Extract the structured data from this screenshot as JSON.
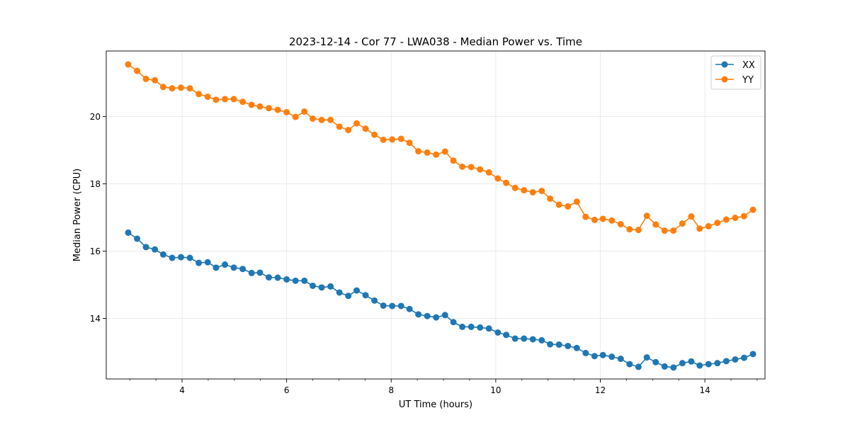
{
  "chart_data": {
    "type": "line",
    "title": "2023-12-14 - Cor 77 - LWA038 - Median Power vs. Time",
    "xlabel": "UT Time (hours)",
    "ylabel": "Median Power (CPU)",
    "xlim": [
      2.55,
      15.15
    ],
    "ylim": [
      12.2,
      21.95
    ],
    "xticks": [
      4,
      6,
      8,
      10,
      12,
      14
    ],
    "xtick_labels": [
      "4",
      "6",
      "8",
      "10",
      "12",
      "14"
    ],
    "yticks": [
      14,
      16,
      18,
      20
    ],
    "ytick_labels": [
      "14",
      "16",
      "18",
      "20"
    ],
    "x_minor_step": 0.5,
    "grid": true,
    "legend_position": "top-right",
    "series": [
      {
        "name": "XX",
        "color": "#1f77b4",
        "x": [
          2.97,
          3.14,
          3.31,
          3.48,
          3.64,
          3.81,
          3.98,
          4.15,
          4.32,
          4.49,
          4.65,
          4.82,
          4.99,
          5.16,
          5.33,
          5.49,
          5.66,
          5.83,
          6.0,
          6.17,
          6.34,
          6.5,
          6.67,
          6.84,
          7.01,
          7.18,
          7.34,
          7.51,
          7.68,
          7.85,
          8.02,
          8.19,
          8.35,
          8.52,
          8.69,
          8.86,
          9.03,
          9.19,
          9.36,
          9.53,
          9.7,
          9.87,
          10.04,
          10.2,
          10.37,
          10.54,
          10.71,
          10.88,
          11.04,
          11.21,
          11.38,
          11.55,
          11.72,
          11.89,
          12.05,
          12.22,
          12.39,
          12.56,
          12.73,
          12.89,
          13.06,
          13.23,
          13.4,
          13.57,
          13.74,
          13.9,
          14.07,
          14.24,
          14.41,
          14.58,
          14.75,
          14.92
        ],
        "y": [
          16.55,
          16.37,
          16.12,
          16.05,
          15.9,
          15.8,
          15.82,
          15.8,
          15.65,
          15.67,
          15.51,
          15.6,
          15.51,
          15.47,
          15.35,
          15.36,
          15.22,
          15.21,
          15.16,
          15.12,
          15.12,
          14.97,
          14.92,
          14.95,
          14.77,
          14.67,
          14.83,
          14.69,
          14.53,
          14.38,
          14.37,
          14.37,
          14.28,
          14.12,
          14.07,
          14.03,
          14.1,
          13.89,
          13.75,
          13.75,
          13.73,
          13.7,
          13.58,
          13.51,
          13.4,
          13.4,
          13.38,
          13.35,
          13.23,
          13.22,
          13.18,
          13.12,
          12.97,
          12.88,
          12.91,
          12.86,
          12.8,
          12.64,
          12.56,
          12.84,
          12.7,
          12.57,
          12.54,
          12.67,
          12.72,
          12.6,
          12.64,
          12.67,
          12.73,
          12.78,
          12.83,
          12.94
        ]
      },
      {
        "name": "YY",
        "color": "#ff7f0e",
        "x": [
          2.97,
          3.14,
          3.31,
          3.48,
          3.64,
          3.81,
          3.98,
          4.15,
          4.32,
          4.49,
          4.65,
          4.82,
          4.99,
          5.16,
          5.33,
          5.49,
          5.66,
          5.83,
          6.0,
          6.17,
          6.34,
          6.5,
          6.67,
          6.84,
          7.01,
          7.18,
          7.34,
          7.51,
          7.68,
          7.85,
          8.02,
          8.19,
          8.35,
          8.52,
          8.69,
          8.86,
          9.03,
          9.19,
          9.36,
          9.53,
          9.7,
          9.87,
          10.04,
          10.2,
          10.37,
          10.54,
          10.71,
          10.88,
          11.04,
          11.21,
          11.38,
          11.55,
          11.72,
          11.89,
          12.05,
          12.22,
          12.39,
          12.56,
          12.73,
          12.89,
          13.06,
          13.23,
          13.4,
          13.57,
          13.74,
          13.9,
          14.07,
          14.24,
          14.41,
          14.58,
          14.75,
          14.92
        ],
        "y": [
          21.55,
          21.36,
          21.12,
          21.08,
          20.88,
          20.84,
          20.86,
          20.84,
          20.67,
          20.59,
          20.5,
          20.52,
          20.52,
          20.44,
          20.35,
          20.3,
          20.25,
          20.2,
          20.13,
          19.99,
          20.15,
          19.94,
          19.9,
          19.9,
          19.7,
          19.6,
          19.8,
          19.64,
          19.46,
          19.31,
          19.32,
          19.34,
          19.22,
          18.97,
          18.93,
          18.87,
          18.96,
          18.69,
          18.51,
          18.5,
          18.43,
          18.34,
          18.16,
          18.03,
          17.88,
          17.81,
          17.75,
          17.79,
          17.56,
          17.38,
          17.33,
          17.47,
          17.02,
          16.93,
          16.96,
          16.91,
          16.8,
          16.65,
          16.63,
          17.05,
          16.79,
          16.61,
          16.61,
          16.82,
          17.03,
          16.67,
          16.74,
          16.84,
          16.94,
          16.99,
          17.04,
          17.23
        ]
      }
    ]
  }
}
